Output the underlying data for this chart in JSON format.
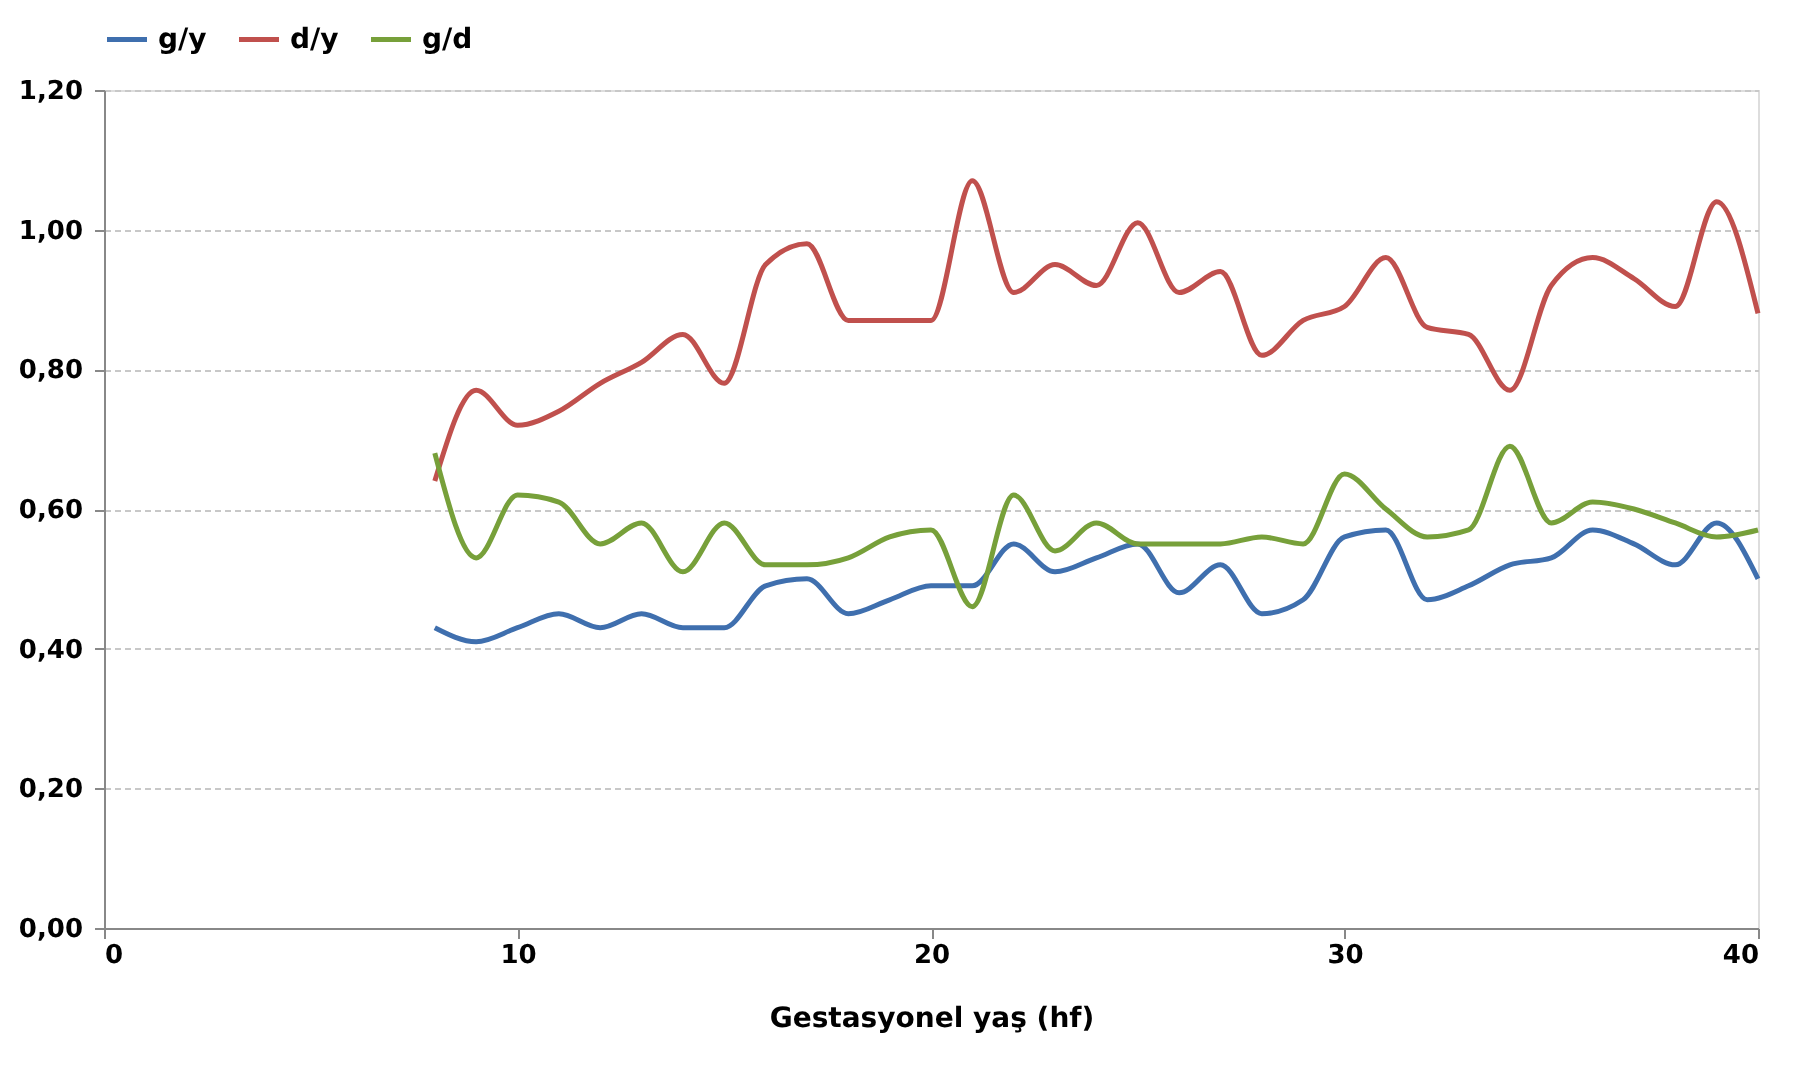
{
  "chart_data": {
    "type": "line",
    "xlabel": "Gestasyonel yaş (hf)",
    "x": [
      8,
      9,
      10,
      11,
      12,
      13,
      14,
      15,
      16,
      17,
      18,
      19,
      20,
      21,
      22,
      23,
      24,
      25,
      26,
      27,
      28,
      29,
      30,
      31,
      32,
      33,
      34,
      35,
      36,
      37,
      38,
      39,
      40
    ],
    "series": [
      {
        "name": "g/y",
        "color": "#3f6fae",
        "values": [
          0.43,
          0.41,
          0.43,
          0.45,
          0.43,
          0.45,
          0.43,
          0.43,
          0.49,
          0.5,
          0.45,
          0.47,
          0.49,
          0.49,
          0.55,
          0.51,
          0.53,
          0.55,
          0.48,
          0.52,
          0.45,
          0.47,
          0.56,
          0.57,
          0.47,
          0.49,
          0.52,
          0.53,
          0.57,
          0.55,
          0.52,
          0.58,
          0.5
        ]
      },
      {
        "name": "d/y",
        "color": "#c0504d",
        "values": [
          0.64,
          0.77,
          0.72,
          0.74,
          0.78,
          0.81,
          0.85,
          0.78,
          0.95,
          0.98,
          0.87,
          0.87,
          0.87,
          1.07,
          0.91,
          0.95,
          0.92,
          1.01,
          0.91,
          0.94,
          0.82,
          0.87,
          0.89,
          0.96,
          0.86,
          0.85,
          0.77,
          0.92,
          0.96,
          0.93,
          0.89,
          1.04,
          0.88
        ]
      },
      {
        "name": "g/d",
        "color": "#77a03a",
        "values": [
          0.68,
          0.53,
          0.62,
          0.61,
          0.55,
          0.58,
          0.51,
          0.58,
          0.52,
          0.52,
          0.53,
          0.56,
          0.57,
          0.46,
          0.62,
          0.54,
          0.58,
          0.55,
          0.55,
          0.55,
          0.56,
          0.55,
          0.65,
          0.6,
          0.56,
          0.57,
          0.69,
          0.58,
          0.61,
          0.6,
          0.58,
          0.56,
          0.57
        ]
      }
    ],
    "xlim": [
      0,
      40
    ],
    "xticks": [
      0,
      10,
      20,
      30,
      40
    ],
    "ylim": [
      0,
      1.2
    ],
    "yticks": [
      {
        "value": 0,
        "label": "0,00"
      },
      {
        "value": 0.2,
        "label": "0,20"
      },
      {
        "value": 0.4,
        "label": "0,40"
      },
      {
        "value": 0.6,
        "label": "0,60"
      },
      {
        "value": 0.8,
        "label": "0,80"
      },
      {
        "value": 1.0,
        "label": "1,00"
      },
      {
        "value": 1.2,
        "label": "1,20"
      }
    ],
    "grid": "y",
    "legend": "top",
    "marker": "none",
    "line_style": "solid"
  }
}
